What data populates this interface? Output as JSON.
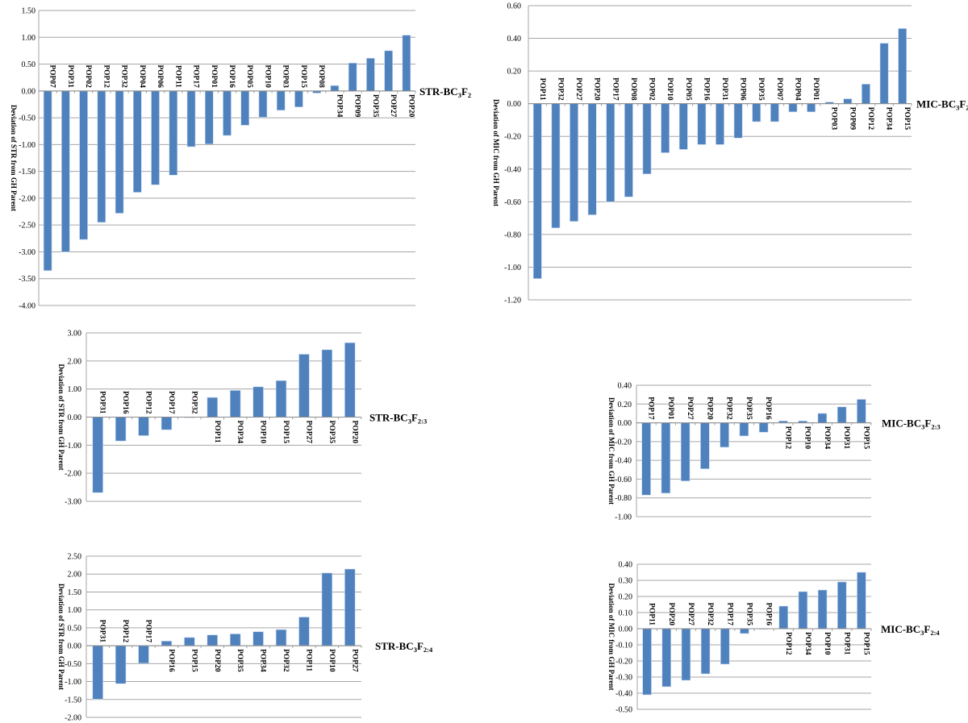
{
  "chart_data": [
    {
      "type": "bar",
      "series_label": [
        [
          "STR-BC",
          ""
        ],
        [
          "3",
          "sub"
        ],
        [
          "F",
          ""
        ],
        [
          "2",
          "sub"
        ]
      ],
      "ylabel": "Deviation of STR from GH Parent",
      "ylim": [
        -4.0,
        1.5
      ],
      "ystep": 0.5,
      "grid": true,
      "categories": [
        "POP07",
        "POP31",
        "POP02",
        "POP12",
        "POP32",
        "POP04",
        "POP06",
        "POP11",
        "POP17",
        "POP01",
        "POP16",
        "POP05",
        "POP10",
        "POP03",
        "POP15",
        "POP08",
        "POP34",
        "POP09",
        "POP35",
        "POP27",
        "POP20"
      ],
      "values": [
        -3.35,
        -3.0,
        -2.77,
        -2.45,
        -2.28,
        -1.89,
        -1.75,
        -1.57,
        -1.04,
        -0.99,
        -0.83,
        -0.64,
        -0.49,
        -0.36,
        -0.3,
        -0.04,
        0.1,
        0.52,
        0.61,
        0.75,
        1.04
      ]
    },
    {
      "type": "bar",
      "series_label": [
        [
          "MIC-BC",
          ""
        ],
        [
          "3",
          "sub"
        ],
        [
          "F",
          ""
        ],
        [
          "2",
          "sub"
        ]
      ],
      "ylabel": "Deviation of MIC from GH Parent",
      "ylim": [
        -1.2,
        0.6
      ],
      "ystep": 0.2,
      "grid": true,
      "categories": [
        "POP11",
        "POP32",
        "POP27",
        "POP20",
        "POP17",
        "POP08",
        "POP02",
        "POP10",
        "POP05",
        "POP16",
        "POP31",
        "POP06",
        "POP35",
        "POP07",
        "POP04",
        "POP01",
        "POP03",
        "POP09",
        "POP12",
        "POP34",
        "POP15"
      ],
      "values": [
        -1.07,
        -0.76,
        -0.72,
        -0.68,
        -0.6,
        -0.57,
        -0.43,
        -0.3,
        -0.28,
        -0.25,
        -0.25,
        -0.21,
        -0.11,
        -0.11,
        -0.05,
        -0.05,
        0.01,
        0.03,
        0.12,
        0.37,
        0.46
      ]
    },
    {
      "type": "bar",
      "series_label": [
        [
          "STR-BC",
          ""
        ],
        [
          "3",
          "sub"
        ],
        [
          "F",
          ""
        ],
        [
          "2:3",
          "sub"
        ]
      ],
      "ylabel": "Deviation of STR from GH Parent",
      "ylim": [
        -3.0,
        3.0
      ],
      "ystep": 1.0,
      "grid": true,
      "categories": [
        "POP31",
        "POP16",
        "POP12",
        "POP17",
        "POP32",
        "POP11",
        "POP34",
        "POP10",
        "POP15",
        "POP27",
        "POP35",
        "POP20"
      ],
      "values": [
        -2.69,
        -0.85,
        -0.66,
        -0.45,
        -0.01,
        0.7,
        0.95,
        1.08,
        1.3,
        2.24,
        2.4,
        2.65
      ]
    },
    {
      "type": "bar",
      "series_label": [
        [
          "MIC-BC",
          ""
        ],
        [
          "3",
          "sub"
        ],
        [
          "F",
          ""
        ],
        [
          "2:3",
          "sub"
        ]
      ],
      "ylabel": "Deviation of MIC from GH Parent",
      "ylim": [
        -1.0,
        0.4
      ],
      "ystep": 0.2,
      "grid": true,
      "categories": [
        "POP17",
        "POP01",
        "POP27",
        "POP20",
        "POP32",
        "POP35",
        "POP16",
        "POP12",
        "POP10",
        "POP34",
        "POP31",
        "POP15"
      ],
      "values": [
        -0.77,
        -0.75,
        -0.62,
        -0.49,
        -0.26,
        -0.14,
        -0.1,
        0.02,
        0.02,
        0.1,
        0.17,
        0.25
      ]
    },
    {
      "type": "bar",
      "series_label": [
        [
          "STR-BC",
          ""
        ],
        [
          "3",
          "sub"
        ],
        [
          "F",
          ""
        ],
        [
          "2:4",
          "sub"
        ]
      ],
      "ylabel": "Deviation of STR from GH Parent",
      "ylim": [
        -2.0,
        2.5
      ],
      "ystep": 0.5,
      "grid": true,
      "categories": [
        "POP31",
        "POP12",
        "POP17",
        "POP16",
        "POP15",
        "POP20",
        "POP35",
        "POP34",
        "POP32",
        "POP11",
        "POP10",
        "POP27"
      ],
      "values": [
        -1.49,
        -1.06,
        -0.49,
        0.13,
        0.23,
        0.3,
        0.33,
        0.39,
        0.45,
        0.8,
        2.03,
        2.14
      ]
    },
    {
      "type": "bar",
      "series_label": [
        [
          "MIC-BC",
          ""
        ],
        [
          "3",
          "sub"
        ],
        [
          "F",
          ""
        ],
        [
          "2:4",
          "sub"
        ]
      ],
      "ylabel": "Deviation of MIC from GH Parent",
      "ylim": [
        -0.5,
        0.4
      ],
      "ystep": 0.1,
      "grid": true,
      "categories": [
        "POP11",
        "POP20",
        "POP27",
        "POP32",
        "POP17",
        "POP35",
        "POP16",
        "POP12",
        "POP34",
        "POP10",
        "POP31",
        "POP15"
      ],
      "values": [
        -0.41,
        -0.36,
        -0.32,
        -0.28,
        -0.22,
        -0.03,
        0.0,
        0.14,
        0.23,
        0.24,
        0.29,
        0.35
      ]
    }
  ]
}
